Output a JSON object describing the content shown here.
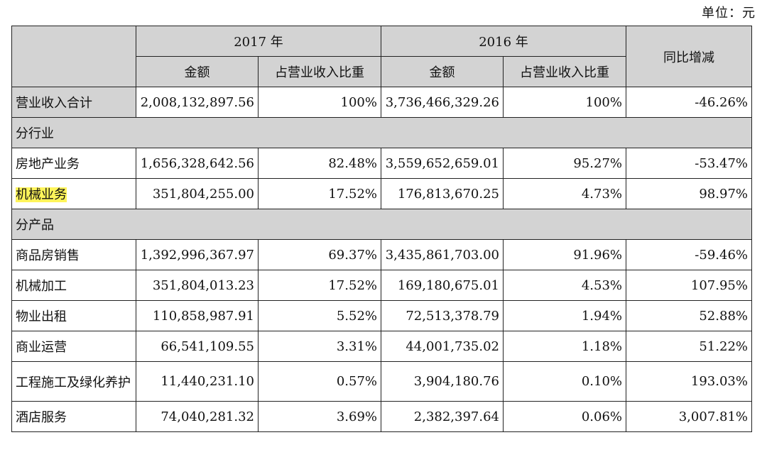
{
  "unit_label": "单位：元",
  "header": {
    "year_2017": "2017 年",
    "year_2016": "2016 年",
    "yoy": "同比增减",
    "amount": "金额",
    "ratio": "占营业收入比重"
  },
  "total_row": {
    "label": "营业收入合计",
    "a2017": "2,008,132,897.56",
    "r2017": "100%",
    "a2016": "3,736,466,329.26",
    "r2016": "100%",
    "yoy": "-46.26%"
  },
  "section_industry": "分行业",
  "industry_rows": [
    {
      "label": "房地产业务",
      "a2017": "1,656,328,642.56",
      "r2017": "82.48%",
      "a2016": "3,559,652,659.01",
      "r2016": "95.27%",
      "yoy": "-53.47%"
    },
    {
      "label": "机械业务",
      "a2017": "351,804,255.00",
      "r2017": "17.52%",
      "a2016": "176,813,670.25",
      "r2016": "4.73%",
      "yoy": "98.97%"
    }
  ],
  "section_product": "分产品",
  "product_rows": [
    {
      "label": "商品房销售",
      "a2017": "1,392,996,367.97",
      "r2017": "69.37%",
      "a2016": "3,435,861,703.00",
      "r2016": "91.96%",
      "yoy": "-59.46%"
    },
    {
      "label": "机械加工",
      "a2017": "351,804,013.23",
      "r2017": "17.52%",
      "a2016": "169,180,675.01",
      "r2016": "4.53%",
      "yoy": "107.95%"
    },
    {
      "label": "物业出租",
      "a2017": "110,858,987.91",
      "r2017": "5.52%",
      "a2016": "72,513,378.79",
      "r2016": "1.94%",
      "yoy": "52.88%"
    },
    {
      "label": "商业运营",
      "a2017": "66,541,109.55",
      "r2017": "3.31%",
      "a2016": "44,001,735.02",
      "r2016": "1.18%",
      "yoy": "51.22%"
    },
    {
      "label": "工程施工及绿化养护",
      "a2017": "11,440,231.10",
      "r2017": "0.57%",
      "a2016": "3,904,180.76",
      "r2016": "0.10%",
      "yoy": "193.03%"
    },
    {
      "label": "酒店服务",
      "a2017": "74,040,281.32",
      "r2017": "3.69%",
      "a2016": "2,382,397.64",
      "r2016": "0.06%",
      "yoy": "3,007.81%"
    }
  ]
}
